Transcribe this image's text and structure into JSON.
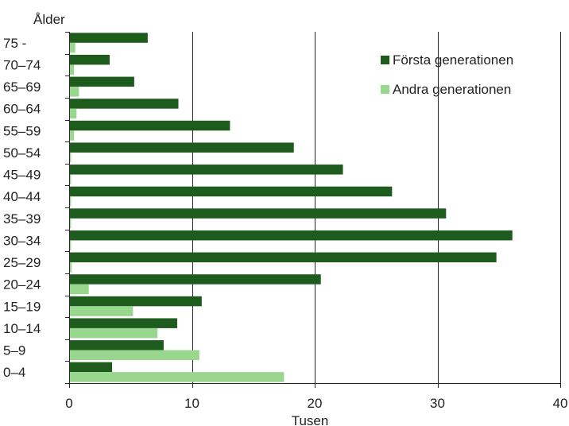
{
  "chart_data": {
    "type": "bar",
    "orientation": "horizontal",
    "ylabel": "Ålder",
    "xlabel": "Tusen",
    "xlim": [
      0,
      40
    ],
    "xticks": [
      0,
      10,
      20,
      30,
      40
    ],
    "grid": true,
    "legend_position": "top-right",
    "categories": [
      "75 -",
      "70–74",
      "65–69",
      "60–64",
      "55–59",
      "50–54",
      "45–49",
      "40–44",
      "35–39",
      "30–34",
      "25–29",
      "20–24",
      "15–19",
      "10–14",
      "5–9",
      "0–4"
    ],
    "series": [
      {
        "name": "Första generationen",
        "color": "#1e5c1e",
        "values": [
          6.4,
          3.3,
          5.3,
          8.9,
          13.1,
          18.3,
          22.3,
          26.3,
          30.7,
          36.1,
          34.8,
          20.5,
          10.8,
          8.8,
          7.7,
          3.5
        ]
      },
      {
        "name": "Andra generationen",
        "color": "#99d78f",
        "values": [
          0.5,
          0.4,
          0.8,
          0.6,
          0.4,
          0.15,
          0.15,
          0.15,
          0.15,
          0.15,
          0.2,
          1.6,
          5.2,
          7.2,
          10.6,
          17.5
        ]
      }
    ]
  }
}
